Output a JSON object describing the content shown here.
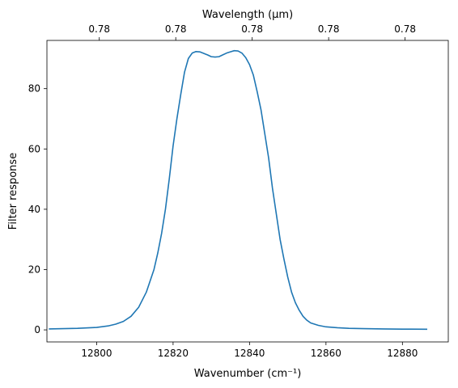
{
  "chart_data": {
    "type": "line",
    "xlabel": "Wavenumber (cm⁻¹)",
    "ylabel": "Filter response",
    "top_xlabel": "Wavelength (μm)",
    "xlim": [
      12787,
      12892
    ],
    "ylim": [
      -4,
      96
    ],
    "x_ticks": [
      12800,
      12820,
      12840,
      12860,
      12880
    ],
    "y_ticks": [
      0,
      20,
      40,
      60,
      80
    ],
    "top_ticks": [
      {
        "at": 12800,
        "label": "0.78"
      },
      {
        "at": 12820,
        "label": "0.78"
      },
      {
        "at": 12840,
        "label": "0.78"
      },
      {
        "at": 12860,
        "label": "0.78"
      },
      {
        "at": 12880,
        "label": "0.78"
      }
    ],
    "grid": false,
    "series": [
      {
        "color": "#1f77b4",
        "x": [
          12787.5,
          12795,
          12800,
          12803,
          12805,
          12807,
          12809,
          12811,
          12813,
          12815,
          12816,
          12817,
          12818,
          12819,
          12820,
          12821,
          12822,
          12823,
          12824,
          12825,
          12826,
          12827,
          12828,
          12829,
          12830,
          12831,
          12832,
          12833,
          12834,
          12835,
          12836,
          12837,
          12838,
          12839,
          12840,
          12841,
          12842,
          12843,
          12844,
          12845,
          12846,
          12847,
          12848,
          12849,
          12850,
          12851,
          12852,
          12853,
          12854,
          12855,
          12856,
          12858,
          12860,
          12863,
          12866,
          12870,
          12875,
          12880,
          12886.5
        ],
        "y": [
          0.3,
          0.5,
          0.8,
          1.3,
          1.9,
          2.8,
          4.5,
          7.5,
          12.5,
          20,
          25.5,
          32,
          40,
          50,
          61,
          70,
          78,
          85.5,
          90,
          91.8,
          92.3,
          92.2,
          91.7,
          91.2,
          90.6,
          90.5,
          90.6,
          91.2,
          91.8,
          92.2,
          92.6,
          92.5,
          91.8,
          90.3,
          88,
          84.5,
          79,
          73,
          65,
          57,
          47,
          38.5,
          30,
          23.5,
          17.5,
          12.5,
          9,
          6.5,
          4.5,
          3.2,
          2.3,
          1.5,
          1,
          0.7,
          0.5,
          0.4,
          0.3,
          0.25,
          0.2
        ]
      }
    ]
  }
}
